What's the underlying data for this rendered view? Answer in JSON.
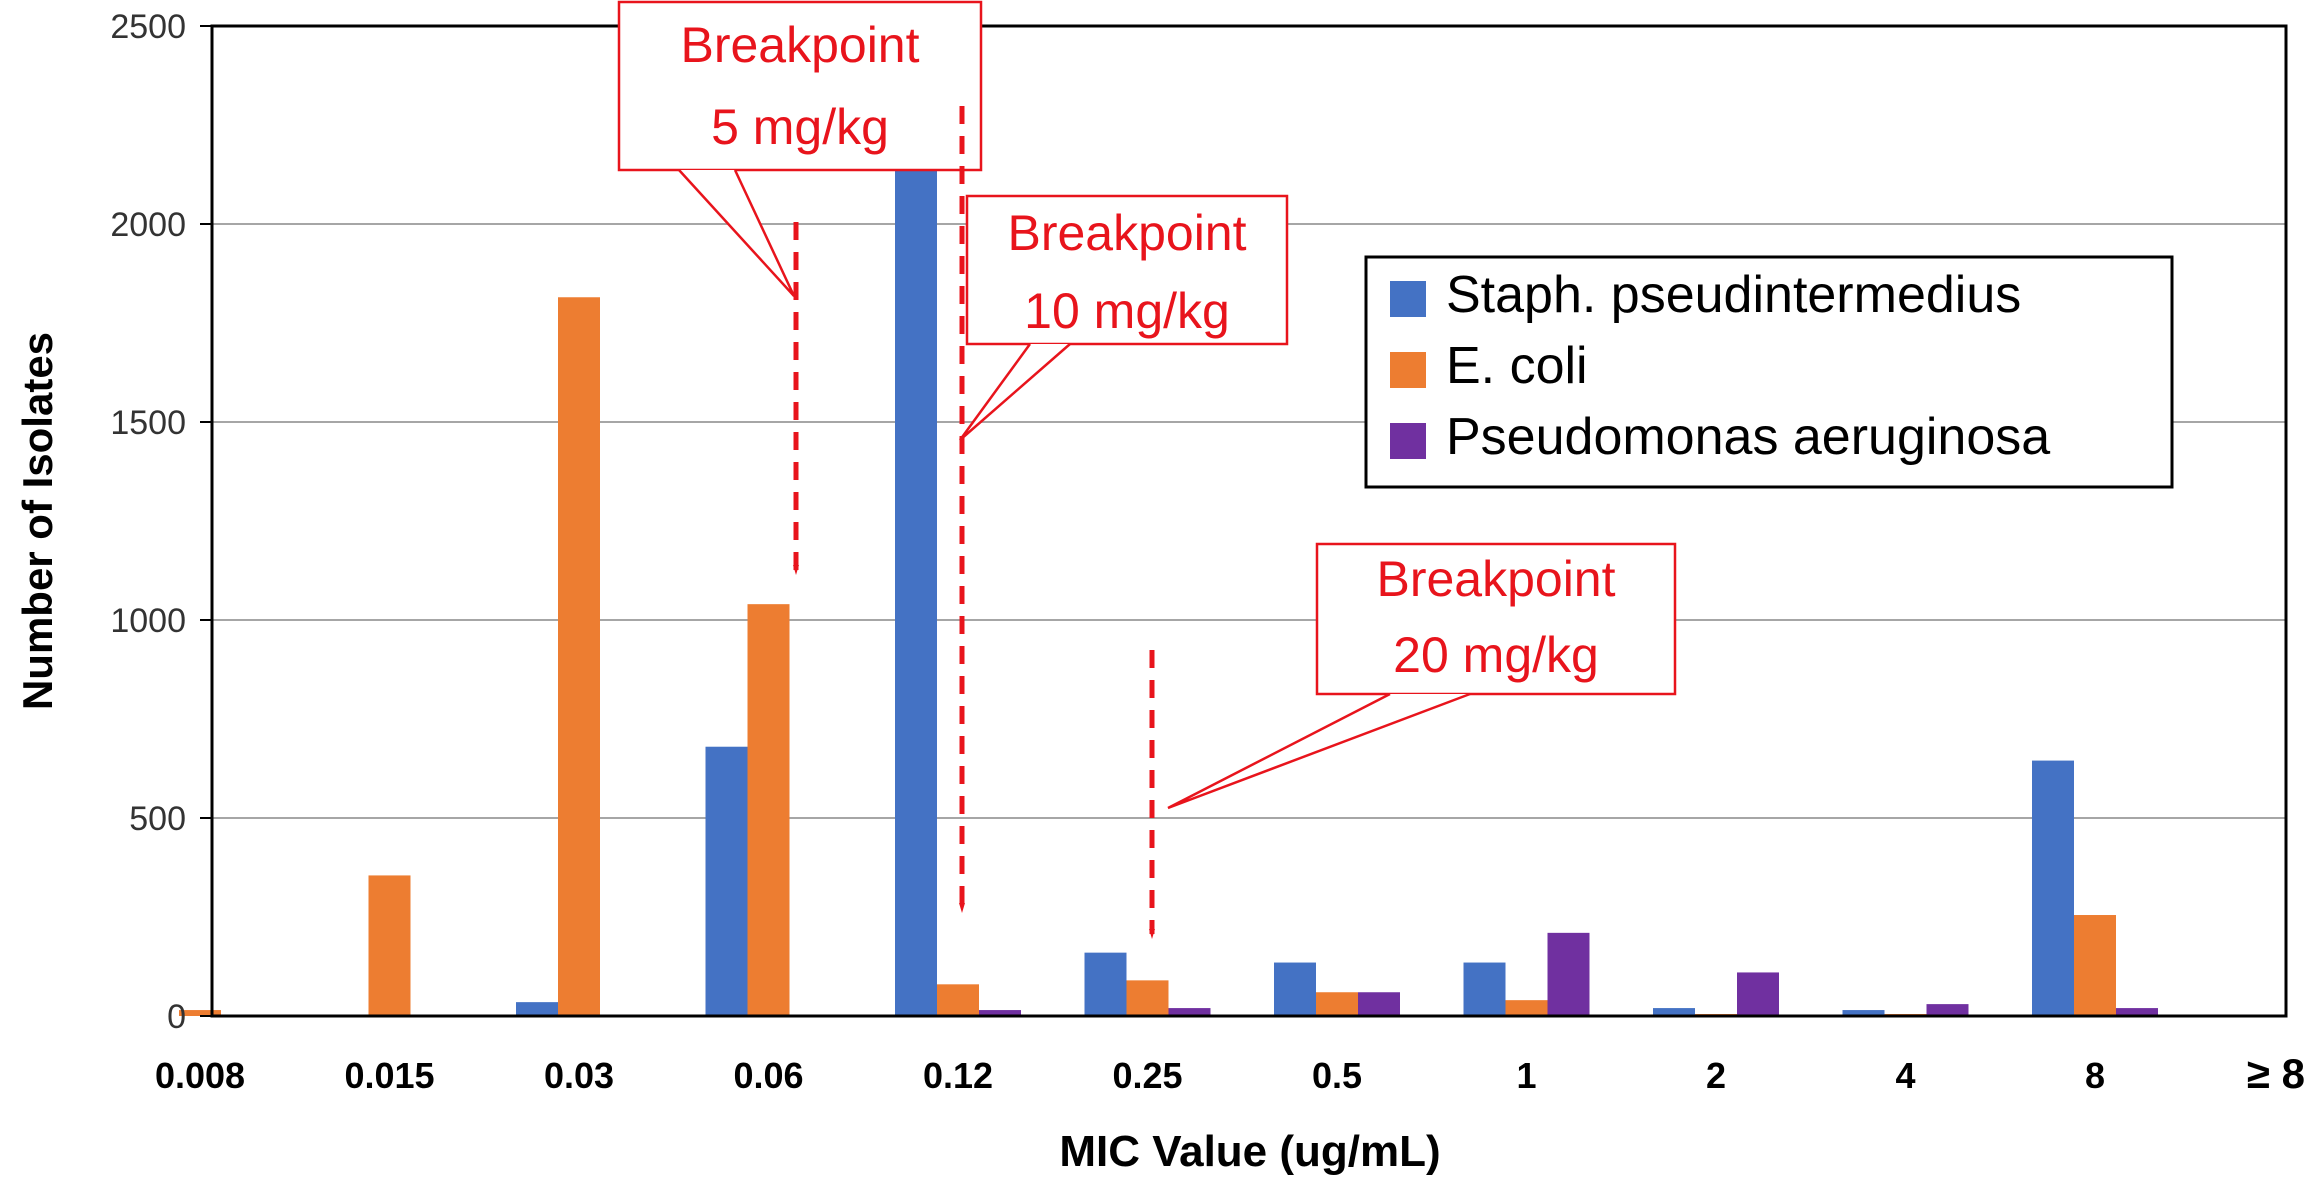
{
  "chart_data": {
    "type": "bar",
    "title": "",
    "xlabel": "MIC Value (ug/mL)",
    "ylabel": "Number of Isolates",
    "ylim": [
      0,
      2500
    ],
    "yticks": [
      0,
      500,
      1000,
      1500,
      2000,
      2500
    ],
    "grid": true,
    "legend_position": "top-right",
    "categories": [
      "0.008",
      "0.015",
      "0.03",
      "0.06",
      "0.12",
      "0.25",
      "0.5",
      "1",
      "2",
      "4",
      "8",
      "≥ 8"
    ],
    "series": [
      {
        "name": "Staph. pseudintermedius",
        "color": "#4472C4",
        "values": [
          0,
          0,
          35,
          680,
          2160,
          160,
          135,
          135,
          20,
          15,
          645,
          0
        ]
      },
      {
        "name": "E. coli",
        "color": "#ED7D31",
        "values": [
          15,
          355,
          1815,
          1040,
          80,
          90,
          60,
          40,
          5,
          5,
          255,
          0
        ]
      },
      {
        "name": "Pseudomonas aeruginosa",
        "color": "#7030A0",
        "values": [
          0,
          0,
          0,
          0,
          15,
          20,
          60,
          210,
          110,
          30,
          20,
          0
        ]
      }
    ],
    "annotations": [
      {
        "line1": "Breakpoint",
        "line2": "5 mg/kg",
        "arrow_at": "0.06"
      },
      {
        "line1": "Breakpoint",
        "line2": "10 mg/kg",
        "arrow_at": "0.12"
      },
      {
        "line1": "Breakpoint",
        "line2": "20 mg/kg",
        "arrow_at": "0.25"
      }
    ],
    "annotation_color": "#E8141C"
  }
}
